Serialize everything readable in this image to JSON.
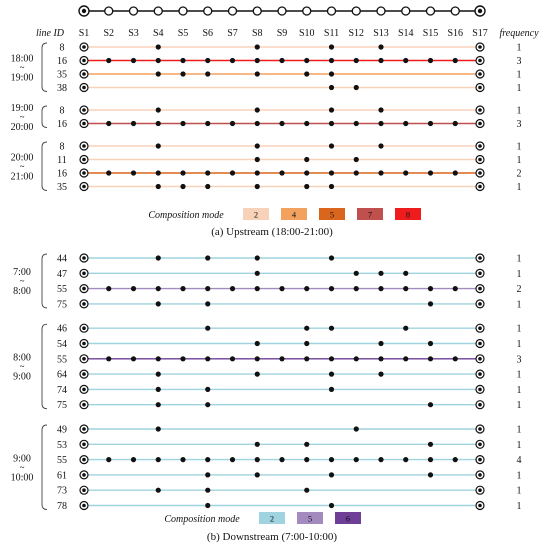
{
  "header": {
    "line_id_label": "line  ID",
    "frequency_label": "frequency",
    "stations": [
      "S1",
      "S2",
      "S3",
      "S4",
      "S5",
      "S6",
      "S7",
      "S8",
      "S9",
      "S10",
      "S11",
      "S12",
      "S13",
      "S14",
      "S15",
      "S16",
      "S17"
    ]
  },
  "upstream": {
    "caption": "(a) Upstream (18:00-21:00)",
    "legend_label": "Composition mode",
    "legend": [
      {
        "value": "2",
        "color": "#f8d2b8"
      },
      {
        "value": "4",
        "color": "#f3a15f"
      },
      {
        "value": "5",
        "color": "#d9661c"
      },
      {
        "value": "7",
        "color": "#c0504d"
      },
      {
        "value": "8",
        "color": "#ee1c1c"
      }
    ],
    "groups": [
      {
        "from": "18:00",
        "to": "19:00",
        "rows": [
          {
            "id": "8",
            "freq": "1",
            "color": "#f8d2b8",
            "stops": [
              4,
              8,
              11,
              13
            ]
          },
          {
            "id": "16",
            "freq": "3",
            "color": "#ee1c1c",
            "stops": [
              2,
              3,
              4,
              5,
              6,
              7,
              8,
              9,
              10,
              11,
              12,
              13,
              14,
              15,
              16
            ]
          },
          {
            "id": "35",
            "freq": "1",
            "color": "#f3a15f",
            "stops": [
              4,
              5,
              6,
              8,
              10,
              11
            ]
          },
          {
            "id": "38",
            "freq": "1",
            "color": "#f8d2b8",
            "stops": [
              11,
              12
            ]
          }
        ]
      },
      {
        "from": "19:00",
        "to": "20:00",
        "rows": [
          {
            "id": "8",
            "freq": "1",
            "color": "#f8d2b8",
            "stops": [
              4,
              8,
              11,
              13
            ]
          },
          {
            "id": "16",
            "freq": "3",
            "color": "#c0504d",
            "stops": [
              2,
              3,
              4,
              5,
              6,
              7,
              8,
              9,
              10,
              11,
              12,
              13,
              14,
              15,
              16
            ]
          }
        ]
      },
      {
        "from": "20:00",
        "to": "21:00",
        "rows": [
          {
            "id": "8",
            "freq": "1",
            "color": "#f8d2b8",
            "stops": [
              4,
              8,
              11,
              13
            ]
          },
          {
            "id": "11",
            "freq": "1",
            "color": "#f8d2b8",
            "stops": [
              8,
              10,
              12
            ]
          },
          {
            "id": "16",
            "freq": "2",
            "color": "#d9661c",
            "stops": [
              2,
              3,
              4,
              5,
              6,
              7,
              8,
              9,
              10,
              11,
              12,
              13,
              14,
              15,
              16
            ]
          },
          {
            "id": "35",
            "freq": "1",
            "color": "#f8d2b8",
            "stops": [
              4,
              5,
              6,
              8,
              10,
              11
            ]
          }
        ]
      }
    ]
  },
  "downstream": {
    "caption": "(b) Downstream (7:00-10:00)",
    "legend_label": "Composition mode",
    "legend": [
      {
        "value": "2",
        "color": "#9fd3df"
      },
      {
        "value": "5",
        "color": "#a38bc0"
      },
      {
        "value": "6",
        "color": "#6f3f98"
      }
    ],
    "groups": [
      {
        "from": "7:00",
        "to": "8:00",
        "rows": [
          {
            "id": "44",
            "freq": "1",
            "color": "#9fd3df",
            "stops": [
              4,
              6,
              8,
              11
            ]
          },
          {
            "id": "47",
            "freq": "1",
            "color": "#9fd3df",
            "stops": [
              8,
              12,
              13,
              14
            ]
          },
          {
            "id": "55",
            "freq": "2",
            "color": "#a38bc0",
            "stops": [
              2,
              3,
              4,
              5,
              6,
              7,
              8,
              9,
              10,
              11,
              12,
              13,
              14,
              15,
              16
            ]
          },
          {
            "id": "75",
            "freq": "1",
            "color": "#9fd3df",
            "stops": [
              4,
              6,
              15
            ]
          }
        ]
      },
      {
        "from": "8:00",
        "to": "9:00",
        "rows": [
          {
            "id": "46",
            "freq": "1",
            "color": "#9fd3df",
            "stops": [
              6,
              10,
              11,
              14
            ]
          },
          {
            "id": "54",
            "freq": "1",
            "color": "#9fd3df",
            "stops": [
              8,
              10,
              13,
              15
            ]
          },
          {
            "id": "55",
            "freq": "3",
            "color": "#6f3f98",
            "stops": [
              2,
              3,
              4,
              5,
              6,
              7,
              8,
              9,
              10,
              11,
              12,
              13,
              14,
              15,
              16
            ]
          },
          {
            "id": "64",
            "freq": "1",
            "color": "#9fd3df",
            "stops": [
              4,
              8,
              11,
              13
            ]
          },
          {
            "id": "74",
            "freq": "1",
            "color": "#9fd3df",
            "stops": [
              4,
              6,
              11
            ]
          },
          {
            "id": "75",
            "freq": "1",
            "color": "#9fd3df",
            "stops": [
              4,
              6,
              15
            ]
          }
        ]
      },
      {
        "from": "9:00",
        "to": "10:00",
        "rows": [
          {
            "id": "49",
            "freq": "1",
            "color": "#9fd3df",
            "stops": [
              4,
              12
            ]
          },
          {
            "id": "53",
            "freq": "1",
            "color": "#9fd3df",
            "stops": [
              8,
              10,
              15
            ]
          },
          {
            "id": "55",
            "freq": "4",
            "color": "#9fd3df",
            "stops": [
              2,
              3,
              4,
              5,
              6,
              7,
              8,
              9,
              10,
              11,
              12,
              13,
              14,
              15,
              16
            ]
          },
          {
            "id": "61",
            "freq": "1",
            "color": "#9fd3df",
            "stops": [
              6,
              8,
              11,
              15
            ]
          },
          {
            "id": "73",
            "freq": "1",
            "color": "#9fd3df",
            "stops": [
              4,
              6,
              10
            ]
          },
          {
            "id": "78",
            "freq": "1",
            "color": "#9fd3df",
            "stops": [
              6,
              11
            ]
          }
        ]
      }
    ]
  }
}
